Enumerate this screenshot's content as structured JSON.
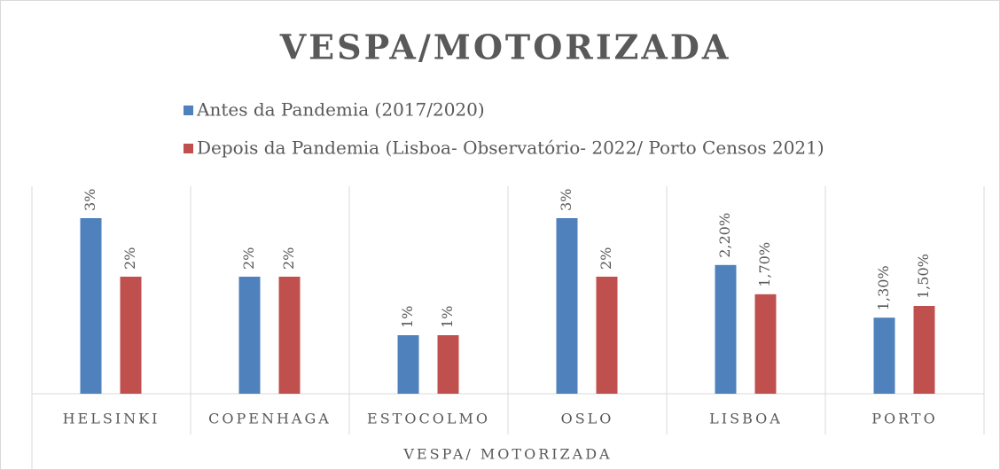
{
  "chart_data": {
    "type": "bar",
    "title": "VESPA/MOTORIZADA",
    "x_label": "VESPA/ MOTORIZADA",
    "categories": [
      "HELSINKI",
      "COPENHAGA",
      "ESTOCOLMO",
      "OSLO",
      "LISBOA",
      "PORTO"
    ],
    "series": [
      {
        "name": "Antes da Pandemia (2017/2020)",
        "color": "#4f81bd",
        "values": [
          3,
          2,
          1,
          3,
          2.2,
          1.3
        ],
        "value_labels": [
          "3%",
          "2%",
          "1%",
          "3%",
          "2,20%",
          "1,30%"
        ]
      },
      {
        "name": "Depois da Pandemia (Lisboa- Observatório- 2022/ Porto Censos 2021)",
        "color": "#c0504d",
        "values": [
          2,
          2,
          1,
          2,
          1.7,
          1.5
        ],
        "value_labels": [
          "2%",
          "2%",
          "1%",
          "2%",
          "1,70%",
          "1,50%"
        ]
      }
    ],
    "ylim": [
      0,
      3.5
    ]
  }
}
